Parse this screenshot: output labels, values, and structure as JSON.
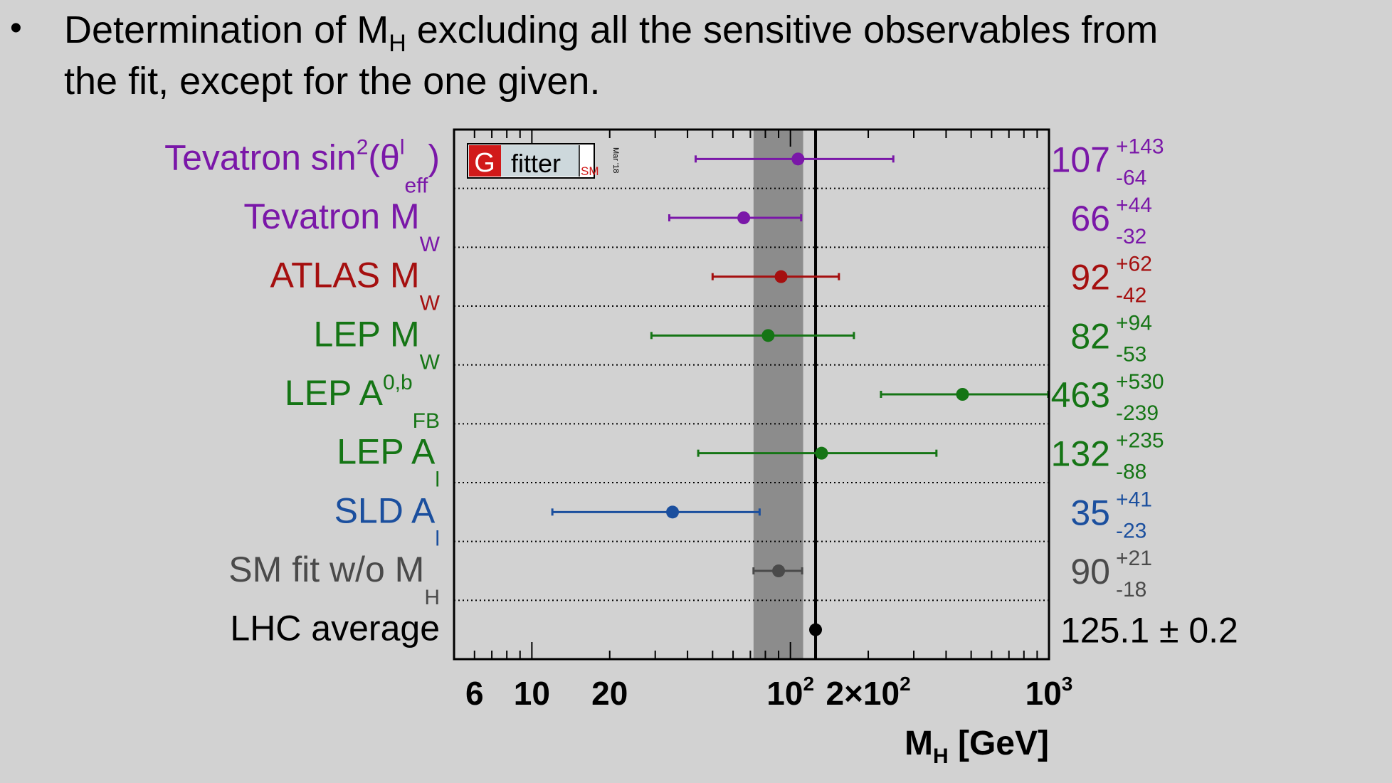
{
  "slide": {
    "bullet": "•",
    "line1_before": "Determination of M",
    "line1_sub": "H",
    "line1_after": " excluding all the sensitive observables from",
    "line2": "the fit, except for the one given."
  },
  "logo": {
    "letter": "G",
    "word": "fitter",
    "tag": "SM",
    "date": "Mar '18"
  },
  "colors": {
    "purple": "#7a17a8",
    "darkred": "#a50f0f",
    "green": "#157515",
    "blue": "#1b4f9e",
    "grey": "#4a4a4a",
    "black": "#000000",
    "band": "#8c8c8c"
  },
  "chart_data": {
    "type": "scatter",
    "xscale": "log",
    "xlim": [
      5,
      1000
    ],
    "xlabel": "M",
    "xlabel_sub": "H",
    "xlabel_unit": "[GeV]",
    "xticks": [
      {
        "value": 6,
        "base": "6"
      },
      {
        "value": 10,
        "base": "10"
      },
      {
        "value": 20,
        "base": "20"
      },
      {
        "value": 100,
        "base": "10",
        "sup": "2"
      },
      {
        "value": 200,
        "base": "2×10",
        "sup": "2"
      },
      {
        "value": 1000,
        "base": "10",
        "sup": "3"
      }
    ],
    "band": [
      72,
      112
    ],
    "reference_line": 125.1,
    "grid": "dotted horizontal separators",
    "series": [
      {
        "parts": [
          {
            "t": "Tevatron sin"
          },
          {
            "t": "2",
            "s": "sup"
          },
          {
            "t": "(θ"
          },
          {
            "t": "l",
            "s": "sup"
          },
          {
            "t": "eff",
            "s": "sub"
          },
          {
            "t": ")"
          }
        ],
        "value": 107,
        "err_plus": 143,
        "err_minus": 64,
        "value_text": "107",
        "plus_text": "+143",
        "minus_text": "-64",
        "color": "#7a17a8"
      },
      {
        "parts": [
          {
            "t": "Tevatron M"
          },
          {
            "t": "W",
            "s": "sub"
          }
        ],
        "value": 66,
        "err_plus": 44,
        "err_minus": 32,
        "value_text": "66",
        "plus_text": "+44",
        "minus_text": "-32",
        "color": "#7a17a8"
      },
      {
        "parts": [
          {
            "t": "ATLAS M"
          },
          {
            "t": "W",
            "s": "sub"
          }
        ],
        "value": 92,
        "err_plus": 62,
        "err_minus": 42,
        "value_text": "92",
        "plus_text": "+62",
        "minus_text": "-42",
        "color": "#a50f0f"
      },
      {
        "parts": [
          {
            "t": "LEP M"
          },
          {
            "t": "W",
            "s": "sub"
          }
        ],
        "value": 82,
        "err_plus": 94,
        "err_minus": 53,
        "value_text": "82",
        "plus_text": "+94",
        "minus_text": "-53",
        "color": "#157515"
      },
      {
        "parts": [
          {
            "t": "LEP A"
          },
          {
            "t": "0,b",
            "s": "sup"
          },
          {
            "t": "FB",
            "s": "sub"
          }
        ],
        "value": 463,
        "err_plus": 530,
        "err_minus": 239,
        "value_text": "463",
        "plus_text": "+530",
        "minus_text": "-239",
        "color": "#157515"
      },
      {
        "parts": [
          {
            "t": "LEP A"
          },
          {
            "t": "l",
            "s": "sub"
          }
        ],
        "value": 132,
        "err_plus": 235,
        "err_minus": 88,
        "value_text": "132",
        "plus_text": "+235",
        "minus_text": "-88",
        "color": "#157515"
      },
      {
        "parts": [
          {
            "t": "SLD A"
          },
          {
            "t": "l",
            "s": "sub"
          }
        ],
        "value": 35,
        "err_plus": 41,
        "err_minus": 23,
        "value_text": "35",
        "plus_text": "+41",
        "minus_text": "-23",
        "color": "#1b4f9e"
      },
      {
        "parts": [
          {
            "t": "SM fit w/o M"
          },
          {
            "t": "H",
            "s": "sub"
          }
        ],
        "value": 90,
        "err_plus": 21,
        "err_minus": 18,
        "value_text": "90",
        "plus_text": "+21",
        "minus_text": "-18",
        "color": "#4a4a4a"
      },
      {
        "parts": [
          {
            "t": "LHC average"
          }
        ],
        "value": 125.1,
        "err_plus": 0.2,
        "err_minus": 0.2,
        "value_text": "125.1",
        "pm_text": "± 0.2",
        "color": "#000000"
      }
    ]
  }
}
